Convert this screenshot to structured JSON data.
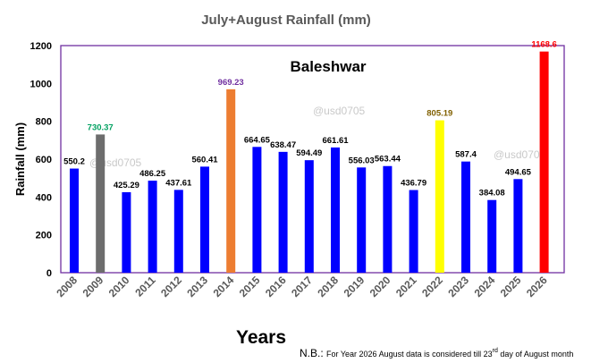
{
  "chart_data": {
    "type": "bar",
    "title": "July+August Rainfall (mm)",
    "subtitle": "Baleshwar",
    "xlabel": "Years",
    "ylabel": "Rainfall (mm)",
    "ylim": [
      0,
      1200
    ],
    "yticks": [
      0,
      200,
      400,
      600,
      800,
      1000,
      1200
    ],
    "grid": false,
    "categories": [
      "2008",
      "2009",
      "2010",
      "2011",
      "2012",
      "2013",
      "2014",
      "2015",
      "2016",
      "2017",
      "2018",
      "2019",
      "2020",
      "2021",
      "2022",
      "2023",
      "2024",
      "2025",
      "2026"
    ],
    "values": [
      550.2,
      730.37,
      425.29,
      486.25,
      437.61,
      560.41,
      969.23,
      664.65,
      638.47,
      594.49,
      661.61,
      556.03,
      563.44,
      436.79,
      805.19,
      587.4,
      384.08,
      494.65,
      1168.6
    ],
    "data_labels": [
      "550.2",
      "730.37",
      "425.29",
      "486.25",
      "437.61",
      "560.41",
      "969.23",
      "664.65",
      "638.47",
      "594.49",
      "661.61",
      "556.03",
      "563.44",
      "436.79",
      "805.19",
      "587.4",
      "384.08",
      "494.65",
      "1168.6"
    ],
    "bar_colors": [
      "#0000ff",
      "#6d6d6d",
      "#0000ff",
      "#0000ff",
      "#0000ff",
      "#0000ff",
      "#ed7d31",
      "#0000ff",
      "#0000ff",
      "#0000ff",
      "#0000ff",
      "#0000ff",
      "#0000ff",
      "#0000ff",
      "#ffff00",
      "#0000ff",
      "#0000ff",
      "#0000ff",
      "#ff0000"
    ],
    "label_colors": [
      "#000000",
      "#00a060",
      "#000000",
      "#000000",
      "#000000",
      "#000000",
      "#7030a0",
      "#000000",
      "#000000",
      "#000000",
      "#000000",
      "#000000",
      "#000000",
      "#000000",
      "#806000",
      "#000000",
      "#000000",
      "#000000",
      "#ff0000"
    ],
    "plot_border_color": "#7030a0",
    "watermarks": [
      "@usd0705",
      "@usd0705",
      "@usd0705"
    ],
    "note_prefix": "N.B.: ",
    "note_text_a": "For Year 2026 August data is considered till 23",
    "note_sup": "rd",
    "note_text_b": "  day of August month"
  }
}
